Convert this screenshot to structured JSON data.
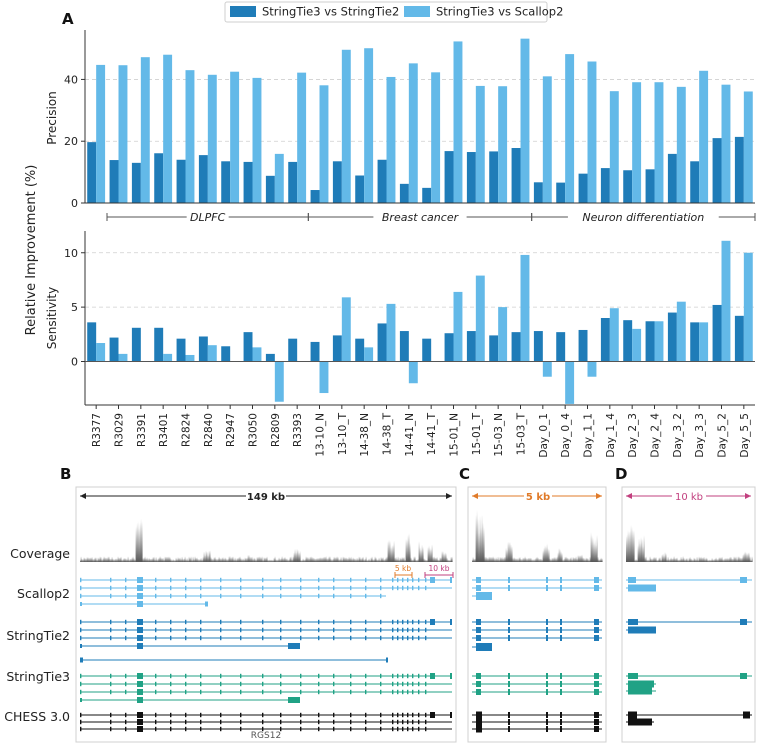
{
  "colors": {
    "dark_blue": "#1f7cb8",
    "light_blue": "#63b9e8",
    "green": "#20a285",
    "black": "#111111",
    "coverage_gray": "#555555",
    "panel_c_accent": "#e07b2a",
    "panel_d_accent": "#c2407f"
  },
  "panel_labels": {
    "a": "A",
    "b": "B",
    "c": "C",
    "d": "D"
  },
  "chart_data": {
    "type": "bar",
    "legend": [
      "StringTie3 vs StringTie2",
      "StringTie3 vs Scallop2"
    ],
    "shared_ylabel": "Relative Improvement (%)",
    "categories": [
      "R3377",
      "R3029",
      "R3391",
      "R3401",
      "R2824",
      "R2840",
      "R2947",
      "R3050",
      "R2809",
      "R3393",
      "13-10_N",
      "13-10_T",
      "14-38_N",
      "14-38_T",
      "14-41_N",
      "14-41_T",
      "15-01_N",
      "15-01_T",
      "15-03_N",
      "15-03_T",
      "Day_0_1",
      "Day_0_4",
      "Day_1_1",
      "Day_1_4",
      "Day_2_3",
      "Day_2_4",
      "Day_3_2",
      "Day_3_3",
      "Day_5_2",
      "Day_5_5"
    ],
    "groups": [
      {
        "label": "DLPFC",
        "start": 0,
        "end": 9
      },
      {
        "label": "Breast cancer",
        "start": 10,
        "end": 19
      },
      {
        "label": "Neuron differentiation",
        "start": 20,
        "end": 29
      }
    ],
    "precision": {
      "ylabel": "Precision",
      "ylim": [
        0,
        56
      ],
      "yticks": [
        0,
        20,
        40
      ],
      "series": [
        {
          "name": "StringTie3 vs StringTie2",
          "values": [
            19.7,
            13.9,
            13.0,
            16.1,
            14.0,
            15.5,
            13.5,
            13.3,
            8.8,
            13.3,
            4.2,
            13.5,
            8.9,
            14.0,
            6.2,
            4.9,
            16.8,
            16.5,
            16.7,
            17.8,
            6.7,
            6.6,
            9.5,
            11.3,
            10.6,
            10.9,
            15.9,
            13.5,
            21.0,
            21.4
          ]
        },
        {
          "name": "StringTie3 vs Scallop2",
          "values": [
            44.7,
            44.6,
            47.2,
            48.0,
            43.0,
            41.5,
            42.5,
            40.5,
            15.9,
            42.2,
            38.1,
            49.6,
            50.1,
            40.8,
            45.2,
            42.3,
            52.3,
            37.9,
            37.8,
            53.2,
            41.0,
            48.2,
            45.8,
            36.2,
            39.1,
            39.1,
            37.6,
            42.8,
            38.3,
            36.1
          ]
        }
      ]
    },
    "sensitivity": {
      "ylabel": "Sensitivity",
      "ylim": [
        -4,
        12
      ],
      "yticks": [
        0,
        5,
        10
      ],
      "series": [
        {
          "name": "StringTie3 vs StringTie2",
          "values": [
            3.6,
            2.2,
            3.1,
            3.1,
            2.1,
            2.3,
            1.4,
            2.7,
            0.7,
            2.1,
            1.8,
            2.4,
            2.1,
            3.5,
            2.8,
            2.1,
            2.6,
            2.8,
            2.4,
            2.7,
            2.8,
            2.7,
            2.9,
            4.0,
            3.8,
            3.7,
            4.5,
            3.6,
            5.2,
            4.2
          ]
        },
        {
          "name": "StringTie3 vs Scallop2",
          "values": [
            1.7,
            0.7,
            0,
            0.7,
            0.6,
            1.5,
            0,
            1.3,
            -3.7,
            0,
            -2.9,
            5.9,
            1.3,
            5.3,
            -2.0,
            0,
            6.4,
            7.9,
            5.0,
            9.8,
            -1.4,
            -3.9,
            -1.4,
            4.9,
            3.0,
            3.7,
            5.5,
            3.6,
            11.1,
            10.0
          ]
        }
      ]
    }
  },
  "genome": {
    "track_labels": {
      "coverage": "Coverage",
      "scallop2": "Scallop2",
      "stringtie2": "StringTie2",
      "stringtie3": "StringTie3",
      "chess": "CHESS 3.0"
    },
    "panel_b_scale": "149 kb",
    "panel_b_zoom_c": "5 kb",
    "panel_b_zoom_d": "10 kb",
    "panel_c_scale": "5 kb",
    "panel_d_scale": "10 kb",
    "gene_name": "RGS12"
  }
}
